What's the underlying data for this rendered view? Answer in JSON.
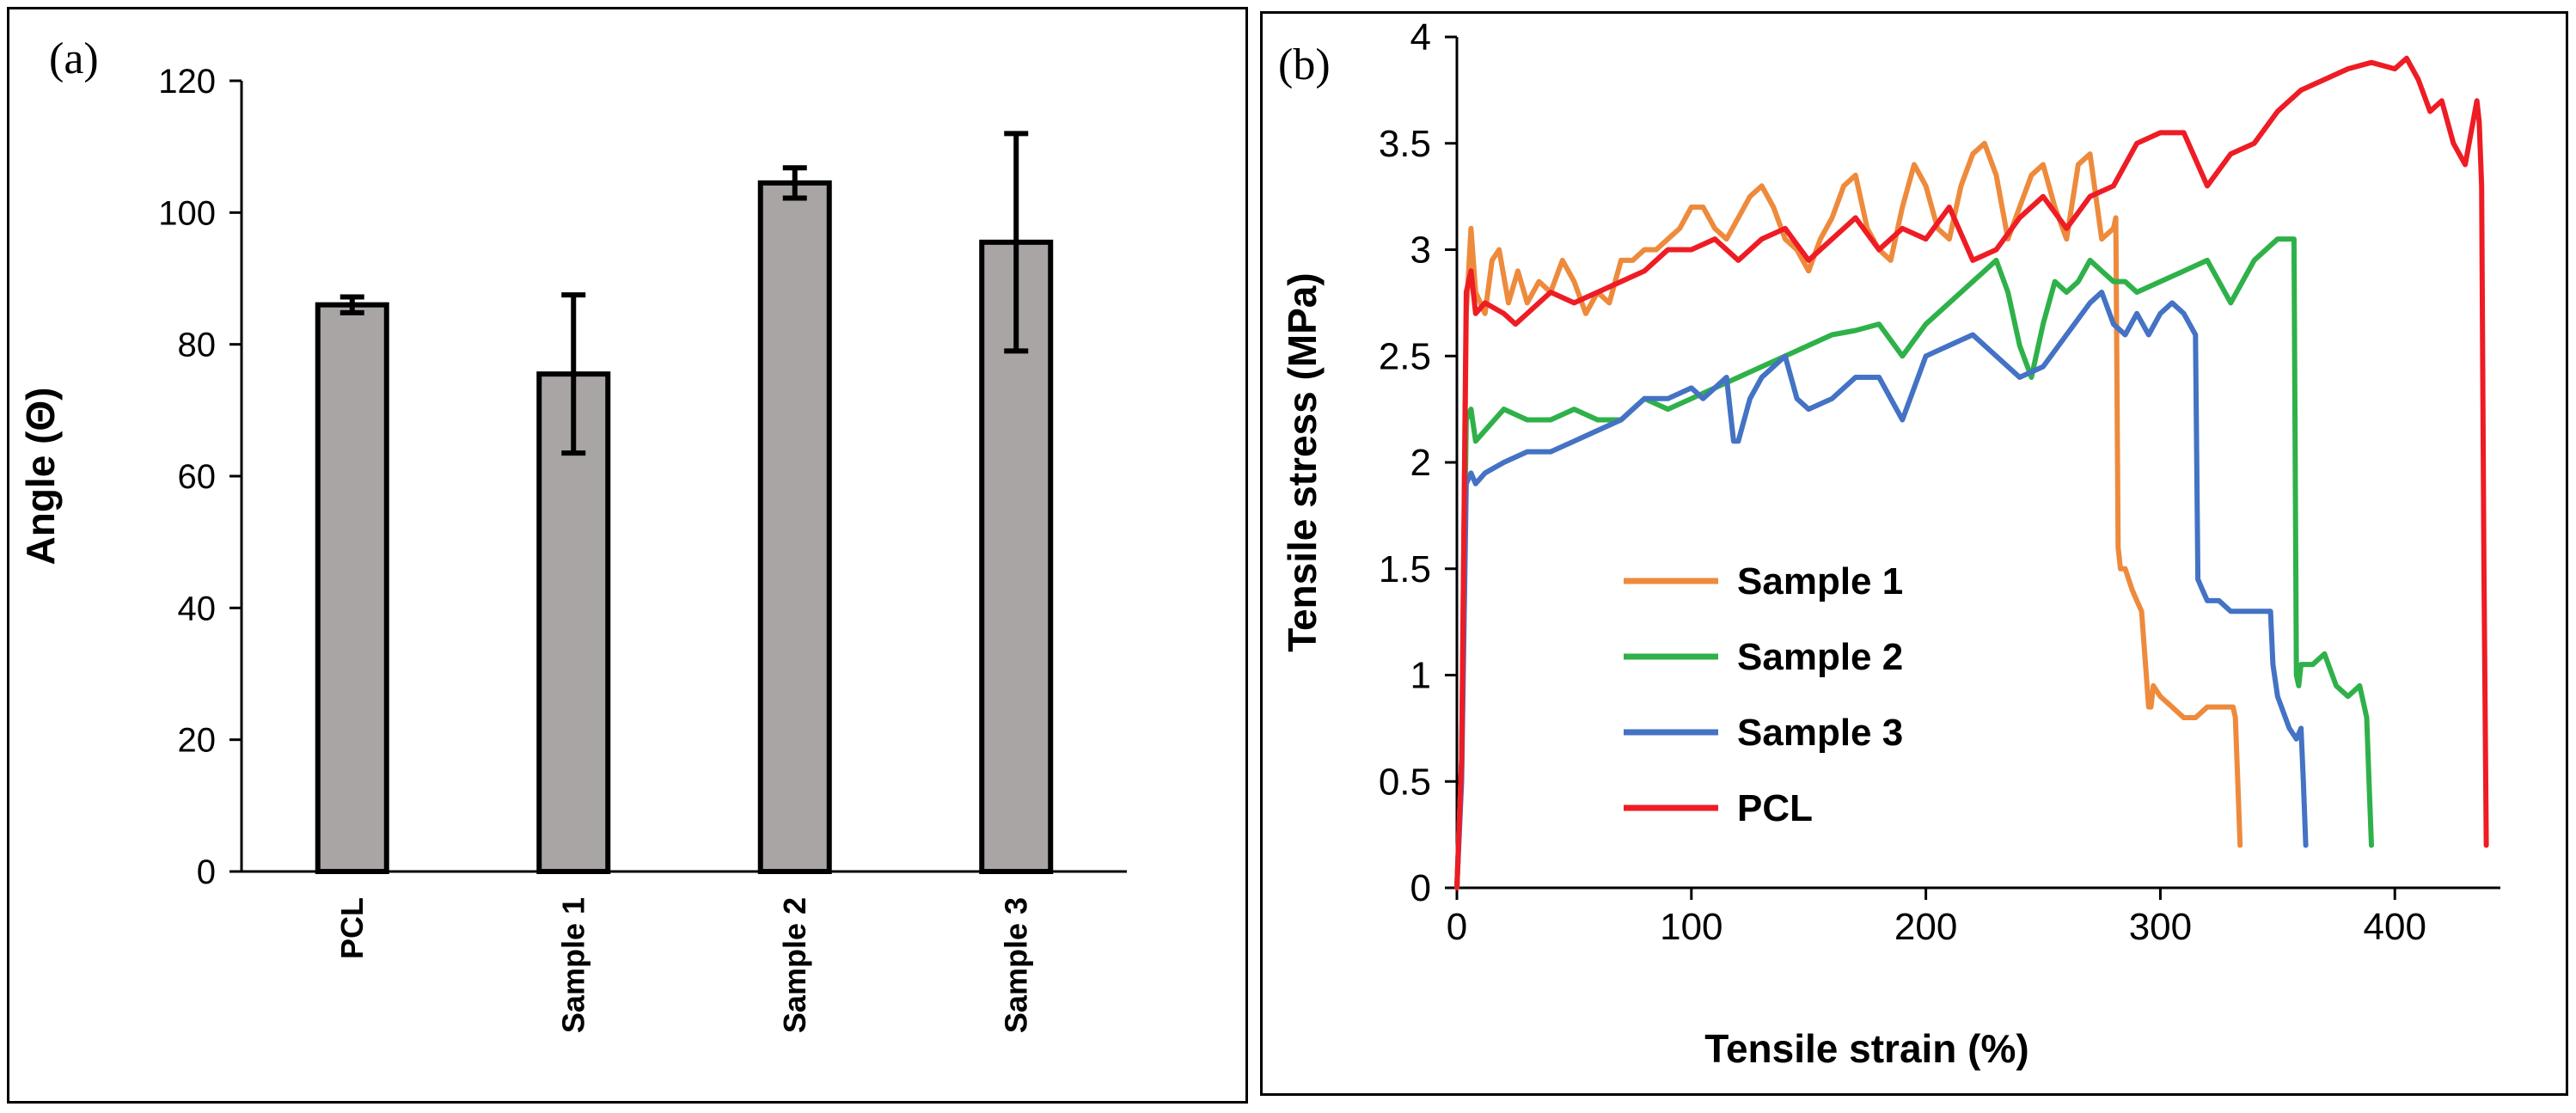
{
  "chart_data": [
    {
      "panel_label": "(a)",
      "type": "bar",
      "categories": [
        "PCL",
        "Sample 1",
        "Sample 2",
        "Sample 3"
      ],
      "values": [
        86,
        75.5,
        104.5,
        95.5
      ],
      "errors": [
        1.2,
        12,
        2.3,
        16.5
      ],
      "ylabel": "Angle (Θ)",
      "xlabel": "",
      "ylim": [
        0,
        120
      ],
      "yticks": [
        0,
        20,
        40,
        60,
        80,
        100,
        120
      ],
      "bar_color": "#a9a5a4",
      "grid": false
    },
    {
      "panel_label": "(b)",
      "type": "line",
      "xlabel": "Tensile strain (%)",
      "ylabel": "Tensile stress (MPa)",
      "xlim": [
        0,
        445
      ],
      "ylim": [
        0,
        4
      ],
      "xticks": [
        0,
        100,
        200,
        300,
        400
      ],
      "yticks": [
        0,
        0.5,
        1,
        1.5,
        2,
        2.5,
        3,
        3.5,
        4
      ],
      "grid": false,
      "legend_position": "center-left",
      "series": [
        {
          "name": "Sample 1",
          "color": "#ee8a3c",
          "x": [
            0,
            2,
            4,
            6,
            8,
            12,
            15,
            18,
            22,
            26,
            30,
            35,
            40,
            45,
            50,
            55,
            60,
            65,
            70,
            75,
            80,
            85,
            90,
            95,
            100,
            105,
            110,
            115,
            120,
            125,
            130,
            135,
            140,
            145,
            150,
            155,
            160,
            165,
            170,
            175,
            180,
            185,
            190,
            195,
            200,
            205,
            210,
            215,
            220,
            225,
            230,
            235,
            240,
            245,
            250,
            255,
            260,
            265,
            270,
            275,
            280,
            281,
            282,
            283,
            285,
            288,
            290,
            292,
            295,
            296,
            297,
            300,
            305,
            310,
            315,
            320,
            325,
            330,
            331,
            332,
            333,
            334
          ],
          "y": [
            0,
            0.6,
            2.7,
            3.1,
            2.8,
            2.7,
            2.95,
            3.0,
            2.75,
            2.9,
            2.75,
            2.85,
            2.8,
            2.95,
            2.85,
            2.7,
            2.8,
            2.75,
            2.95,
            2.95,
            3.0,
            3.0,
            3.05,
            3.1,
            3.2,
            3.2,
            3.1,
            3.05,
            3.15,
            3.25,
            3.3,
            3.2,
            3.05,
            3.0,
            2.9,
            3.05,
            3.15,
            3.3,
            3.35,
            3.1,
            3.0,
            2.95,
            3.2,
            3.4,
            3.3,
            3.1,
            3.05,
            3.3,
            3.45,
            3.5,
            3.35,
            3.05,
            3.2,
            3.35,
            3.4,
            3.2,
            3.05,
            3.4,
            3.45,
            3.05,
            3.1,
            3.15,
            1.6,
            1.5,
            1.5,
            1.4,
            1.35,
            1.3,
            0.85,
            0.85,
            0.95,
            0.9,
            0.85,
            0.8,
            0.8,
            0.85,
            0.85,
            0.85,
            0.85,
            0.8,
            0.5,
            0.2
          ]
        },
        {
          "name": "Sample 2",
          "color": "#2fb14a",
          "x": [
            0,
            2,
            4,
            6,
            8,
            12,
            20,
            30,
            40,
            50,
            60,
            70,
            80,
            90,
            100,
            110,
            120,
            130,
            140,
            150,
            160,
            170,
            180,
            190,
            200,
            210,
            220,
            225,
            230,
            235,
            240,
            245,
            250,
            255,
            260,
            265,
            270,
            275,
            280,
            285,
            290,
            300,
            310,
            320,
            330,
            340,
            350,
            355,
            357,
            358,
            359,
            360,
            365,
            370,
            375,
            380,
            385,
            387,
            388,
            389,
            390
          ],
          "y": [
            0,
            0.6,
            2.2,
            2.25,
            2.1,
            2.15,
            2.25,
            2.2,
            2.2,
            2.25,
            2.2,
            2.2,
            2.3,
            2.25,
            2.3,
            2.35,
            2.4,
            2.45,
            2.5,
            2.55,
            2.6,
            2.62,
            2.65,
            2.5,
            2.65,
            2.75,
            2.85,
            2.9,
            2.95,
            2.8,
            2.55,
            2.4,
            2.65,
            2.85,
            2.8,
            2.85,
            2.95,
            2.9,
            2.85,
            2.85,
            2.8,
            2.85,
            2.9,
            2.95,
            2.75,
            2.95,
            3.05,
            3.05,
            3.05,
            1.0,
            0.95,
            1.05,
            1.05,
            1.1,
            0.95,
            0.9,
            0.95,
            0.85,
            0.8,
            0.5,
            0.2
          ]
        },
        {
          "name": "Sample 3",
          "color": "#4472c4",
          "x": [
            0,
            2,
            4,
            6,
            8,
            12,
            20,
            30,
            40,
            50,
            60,
            70,
            80,
            90,
            100,
            105,
            110,
            115,
            118,
            120,
            125,
            130,
            135,
            140,
            145,
            150,
            160,
            170,
            180,
            190,
            200,
            210,
            220,
            230,
            240,
            250,
            260,
            270,
            275,
            280,
            285,
            290,
            295,
            300,
            305,
            310,
            315,
            316,
            318,
            320,
            325,
            330,
            335,
            340,
            345,
            347,
            348,
            350,
            355,
            358,
            360,
            361,
            362
          ],
          "y": [
            0,
            0.5,
            1.9,
            1.95,
            1.9,
            1.95,
            2.0,
            2.05,
            2.05,
            2.1,
            2.15,
            2.2,
            2.3,
            2.3,
            2.35,
            2.3,
            2.35,
            2.4,
            2.1,
            2.1,
            2.3,
            2.4,
            2.45,
            2.5,
            2.3,
            2.25,
            2.3,
            2.4,
            2.4,
            2.2,
            2.5,
            2.55,
            2.6,
            2.5,
            2.4,
            2.45,
            2.6,
            2.75,
            2.8,
            2.65,
            2.6,
            2.7,
            2.6,
            2.7,
            2.75,
            2.7,
            2.6,
            1.45,
            1.4,
            1.35,
            1.35,
            1.3,
            1.3,
            1.3,
            1.3,
            1.3,
            1.05,
            0.9,
            0.75,
            0.7,
            0.75,
            0.5,
            0.2
          ]
        },
        {
          "name": "PCL",
          "color": "#ee1c24",
          "x": [
            0,
            2,
            4,
            6,
            8,
            12,
            20,
            25,
            30,
            40,
            50,
            60,
            70,
            80,
            90,
            100,
            110,
            120,
            130,
            140,
            150,
            160,
            170,
            180,
            190,
            200,
            210,
            220,
            230,
            240,
            250,
            260,
            270,
            280,
            290,
            300,
            310,
            320,
            330,
            340,
            350,
            360,
            370,
            380,
            390,
            400,
            405,
            410,
            415,
            420,
            425,
            430,
            435,
            436,
            437,
            438,
            439
          ],
          "y": [
            0,
            0.6,
            2.8,
            2.9,
            2.7,
            2.75,
            2.7,
            2.65,
            2.7,
            2.8,
            2.75,
            2.8,
            2.85,
            2.9,
            3.0,
            3.0,
            3.05,
            2.95,
            3.05,
            3.1,
            2.95,
            3.05,
            3.15,
            3.0,
            3.1,
            3.05,
            3.2,
            2.95,
            3.0,
            3.15,
            3.25,
            3.1,
            3.25,
            3.3,
            3.5,
            3.55,
            3.55,
            3.3,
            3.45,
            3.5,
            3.65,
            3.75,
            3.8,
            3.85,
            3.88,
            3.85,
            3.9,
            3.8,
            3.65,
            3.7,
            3.5,
            3.4,
            3.7,
            3.6,
            3.3,
            1.5,
            0.2
          ]
        }
      ]
    }
  ]
}
